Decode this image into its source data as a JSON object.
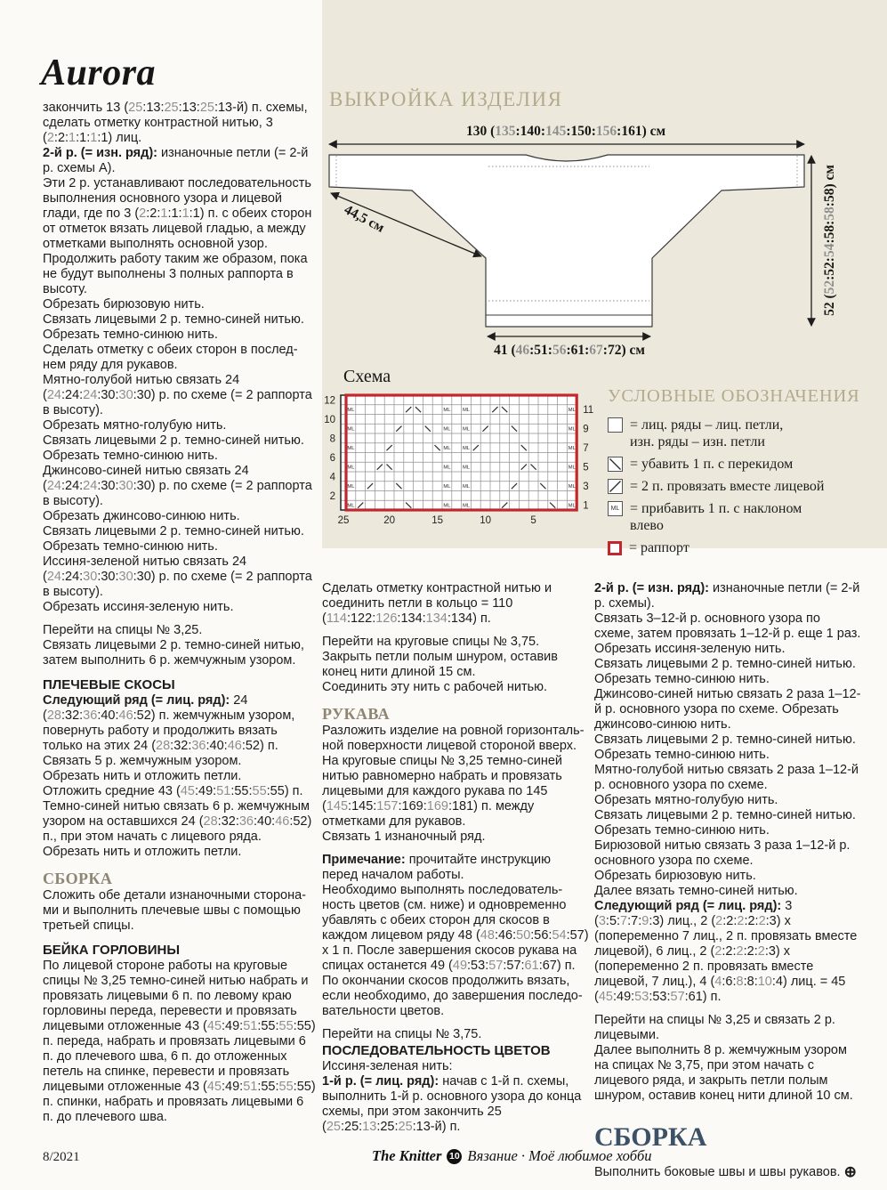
{
  "title": "Aurora",
  "colors": {
    "accent_red": "#c1272d",
    "heading_tan": "#b3aa8c",
    "heading_tan_dark": "#8e8672",
    "heading_navy": "#3d5166",
    "alt_gray": "#8e8e8e",
    "panel_bg": "#ece9dc"
  },
  "left_column": {
    "paragraphs": [
      {
        "t": "закончить 13 (25:13:25:13:25:13-й) п. схемы, сделать отметку контрастной нитью, 3 (2:2:1:1:1:1) лиц."
      },
      {
        "b": "2-й р. (= изн. ряд):",
        "t": "изнаночные петли (= 2-й р. схемы А)."
      },
      {
        "t": "Эти 2 р. устанавливают последователь­ность выполнения основного узора и лицевой глади, где по 3 (2:2:1:1:1:1) п. с обеих сторон от отметок вязать лицевой гладью, а между отметками выполнять основной узор."
      },
      {
        "t": "Продолжить работу таким же образом, пока не будут выполнены 3 полных раппорта в высоту."
      },
      {
        "t": "Обрезать бирюзовую нить."
      },
      {
        "t": "Связать лицевыми 2 р. темно-синей нитью."
      },
      {
        "t": "Обрезать темно-синюю нить."
      },
      {
        "t": "Сделать отметку с обеих сторон в послед­нем ряду для рукавов."
      },
      {
        "t": "Мятно-голубой нитью связать 24 (24:24:24:30:30:30) р. по схеме (= 2 раппорта в высоту)."
      },
      {
        "t": "Обрезать мятно-голубую нить."
      },
      {
        "t": "Связать лицевыми 2 р. темно-синей нитью."
      },
      {
        "t": "Обрезать темно-синюю нить."
      },
      {
        "t": "Джинсово-синей нитью связать 24 (24:24:24:30:30:30) р. по схеме (= 2 раппорта в высоту)."
      },
      {
        "t": "Обрезать джинсово-синюю нить."
      },
      {
        "t": "Связать лицевыми 2 р. темно-синей нитью."
      },
      {
        "t": "Обрезать темно-синюю нить."
      },
      {
        "t": "Иссиня-зеленой нитью связать 24 (24:24:30:30:30:30) р. по схеме (= 2 раппорта в высоту)."
      },
      {
        "t": "Обрезать иссиня-зеленую нить."
      },
      {
        "gap": true
      },
      {
        "t": "Перейти на спицы № 3,25."
      },
      {
        "t": "Связать лицевыми 2 р. темно-синей нитью, затем выполнить 6 р. жемчужным узором."
      },
      {
        "gap": true
      },
      {
        "h": "ПЛЕЧЕВЫЕ СКОСЫ"
      },
      {
        "b": "Следующий ряд (= лиц. ряд):",
        "t": "24 (28:32:36:40:46:52) п. жемчужным узором, повернуть работу и продолжить вязать только на этих 24 (28:32:36:40:46:52) п."
      },
      {
        "t": "Связать 5 р. жемчужным узором."
      },
      {
        "t": "Обрезать нить и отложить петли."
      },
      {
        "t": "Отложить средние 43 (45:49:51:55:55:55) п."
      },
      {
        "t": "Темно-синей нитью связать 6 р. жемчуж­ным узором на оставшихся 24 (28:32:36:40:46:52) п., при этом начать с лицевого ряда."
      },
      {
        "t": "Обрезать нить и отложить петли."
      },
      {
        "gap": true
      },
      {
        "s": "СБОРКА"
      },
      {
        "t": "Сложить обе детали изнаночными сторона­ми и выполнить плечевые швы с помощью третьей спицы."
      },
      {
        "gap": true
      },
      {
        "h": "БЕЙКА ГОРЛОВИНЫ"
      },
      {
        "t": "По лицевой стороне работы на круговые спицы № 3,25 темно-синей нитью набрать и провязать лицевыми 6 п. по левому краю горловины переда, перевести и провязать лицевыми отложенные 43 (45:49:51:55:55:55) п. переда, набрать и провязать лицевы­ми 6 п. до плечевого шва, 6 п. до отложен­ных петель на спинке, перевести и провя­зать лицевыми отложенные 43 (45:49:51:55:55:55) п. спинки, набрать и провязать лицевыми 6 п. до плечевого шва."
      }
    ]
  },
  "middle_column": {
    "paragraphs": [
      {
        "t": "Сделать отметку контрастной нитью и соединить петли в кольцо = 110 (114:122:126:134:134:134) п."
      },
      {
        "gap": true
      },
      {
        "t": "Перейти на круговые спицы № 3,75."
      },
      {
        "t": "Закрыть петли полым шнуром,  оставив конец нити длиной 15 см."
      },
      {
        "t": "Соединить эту нить с рабочей нитью."
      },
      {
        "gap": true
      },
      {
        "s": "РУКАВА"
      },
      {
        "t": "Разложить изделие на ровной горизонталь­ной поверхности лицевой стороной вверх."
      },
      {
        "t": "На круговые спицы № 3,25 темно-синей нитью равномерно набрать и провязать лицевыми для каждого рукава по 145 (145:145:157:169:169:181) п. между отметками для рукавов."
      },
      {
        "t": "Связать 1 изнаночный ряд."
      },
      {
        "gap": true
      },
      {
        "b": "Примечание:",
        "t": "прочитайте инструкцию перед началом работы."
      },
      {
        "t": "Необходимо выполнять последователь­ность цветов (см. ниже) и одновременно убавлять с обеих сторон для скосов в каждом лицевом ряду 48 (48:46:50:56:54:57) х 1 п. После завершения скосов рукава на спицах останется 49 (49:53:57:57:61:67) п. По окончании скосов продолжить вязать, если необходимо, до завершения последо­вательности цветов."
      },
      {
        "gap": true
      },
      {
        "t": "Перейти на спицы № 3,75."
      },
      {
        "h": "ПОСЛЕДОВАТЕЛЬНОСТЬ ЦВЕТОВ"
      },
      {
        "t": "Иссиня-зеленая нить:"
      },
      {
        "b": "1-й р. (= лиц. ряд):",
        "t": "начав с 1-й п. схемы, выполнить 1-й р. основного узора до конца схемы, при этом закончить 25 (25:25:13:25:25:13-й) п."
      }
    ]
  },
  "right_column": {
    "paragraphs": [
      {
        "b": "2-й р. (= изн. ряд):",
        "t": "изнаночные петли (= 2-й р. схемы)."
      },
      {
        "t": "Связать 3–12-й р. основного узора по схеме, затем провязать 1–12-й р. еще 1 раз."
      },
      {
        "t": "Обрезать иссиня-зеленую нить."
      },
      {
        "t": "Связать лицевыми 2 р. темно-синей нитью."
      },
      {
        "t": "Обрезать темно-синюю нить."
      },
      {
        "t": "Джинсово-синей нитью связать 2 раза 1–12-й р. основного узора по схеме. Обрезать джинсово-синюю нить."
      },
      {
        "t": "Связать лицевыми 2 р. темно-синей нитью."
      },
      {
        "t": "Обрезать темно-синюю нить."
      },
      {
        "t": "Мятно-голубой нитью связать 2 раза 1–12-й р. основного узора по схеме."
      },
      {
        "t": "Обрезать мятно-голубую нить."
      },
      {
        "t": "Связать лицевыми 2 р. темно-синей нитью."
      },
      {
        "t": "Обрезать темно-синюю нить."
      },
      {
        "t": "Бирюзовой нитью связать 3 раза 1–12-й р. основного узора по схеме."
      },
      {
        "t": "Обрезать бирюзовую нить."
      },
      {
        "t": "Далее вязать темно-синей нитью."
      },
      {
        "b": "Следующий ряд (= лиц. ряд):",
        "t": "3 (3:5:7:7:9:3) лиц., 2 (2:2:2:2:2:3) х (попеременно 7 лиц., 2 п. провязать вместе лицевой), 6 лиц., 2 (2:2:2:2:2:3) х (попеременно 2 п. провязать вместе лицевой, 7 лиц.), 4 (4:6:8:8:10:4) лиц. = 45 (45:49:53:53:57:61) п."
      },
      {
        "gap": true
      },
      {
        "t": "Перейти на спицы № 3,25 и связать 2 р. лицевыми."
      },
      {
        "t": "Далее выполнить 8 р. жемчужным узором на спицах № 3,75, при этом начать с лицевого ряда, и закрыть петли полым шнуром, оставив конец нити длиной 10 см."
      },
      {
        "gap": true
      },
      {
        "s2": "СБОРКА"
      },
      {
        "t": "Выполнить боковые швы и швы рукавов.",
        "marker": "⊕"
      }
    ]
  },
  "pattern_diagram": {
    "title": "ВЫКРОЙКА ИЗДЕЛИЯ",
    "width_label": "130 (135:140:145:150:156:161) см",
    "sleeve_label": "44,5 см",
    "height_label": "52 (52:52:54:58:58:58) см",
    "hem_label": "41 (46:51:56:61:67:72) см"
  },
  "chart": {
    "title": "Схема",
    "cols": 25,
    "rows": 12,
    "left_labels": [
      12,
      10,
      8,
      6,
      4,
      2
    ],
    "right_labels": [
      11,
      9,
      7,
      5,
      3,
      1
    ],
    "bottom_labels": [
      25,
      20,
      15,
      10,
      5
    ],
    "symbols": {
      "make_one_left_columns": [
        24,
        14,
        12,
        1
      ],
      "rows": [
        {
          "row": 1,
          "k2tog": [
            23,
            8
          ],
          "slip_dec": [
            18,
            3
          ]
        },
        {
          "row": 3,
          "k2tog": [
            22,
            7
          ],
          "slip_dec": [
            19,
            4
          ]
        },
        {
          "row": 5,
          "k2tog": [
            21,
            6
          ],
          "slip_dec": [
            20,
            5
          ]
        },
        {
          "row": 7,
          "k2tog": [
            20,
            11
          ],
          "slip_dec": [
            15,
            6
          ]
        },
        {
          "row": 9,
          "k2tog": [
            19,
            10
          ],
          "slip_dec": [
            16,
            7
          ]
        },
        {
          "row": 11,
          "k2tog": [
            18,
            9
          ],
          "slip_dec": [
            17,
            8
          ]
        }
      ]
    }
  },
  "legend": {
    "title": "УСЛОВНЫЕ ОБОЗНАЧЕНИЯ",
    "items": [
      {
        "symbol": "knit",
        "text": "= лиц. ряды – лиц. петли,\nизн. ряды – изн. петли"
      },
      {
        "symbol": "slip_dec",
        "text": "= убавить 1 п. с перекидом"
      },
      {
        "symbol": "k2tog",
        "text": "= 2 п. провязать вместе лицевой"
      },
      {
        "symbol": "ml",
        "ml_text": "ML",
        "text": "= прибавить 1 п. с наклоном\nвлево"
      },
      {
        "symbol": "repeat",
        "text": "= раппорт"
      }
    ]
  },
  "footer": {
    "issue_date": "8/2021",
    "brand": "The Knitter",
    "page_number": "10",
    "tagline": "Вязание · Моё любимое хобби"
  }
}
